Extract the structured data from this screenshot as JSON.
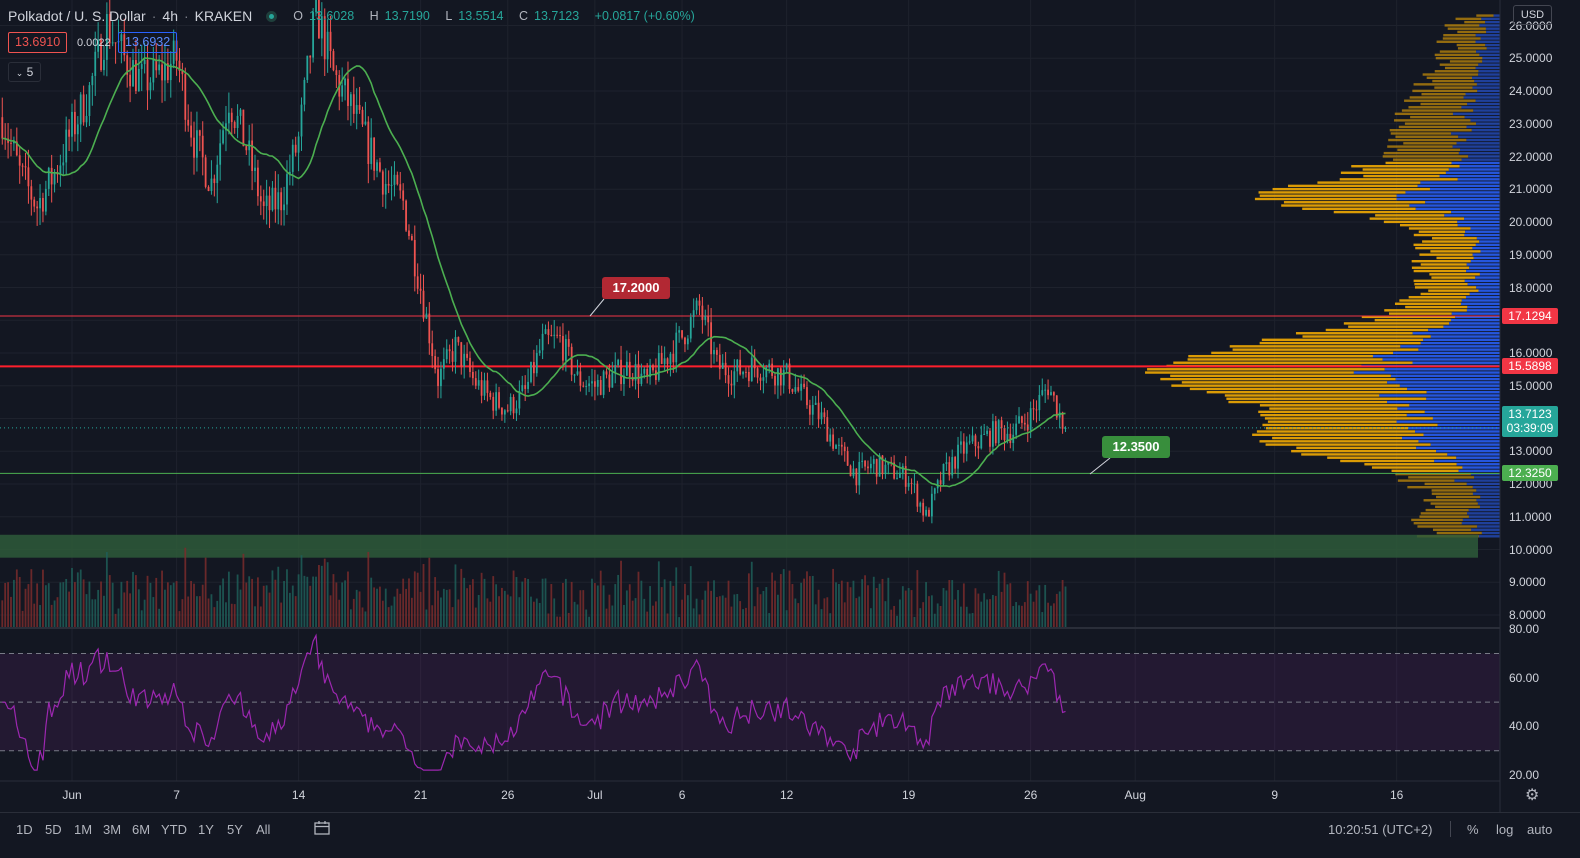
{
  "header": {
    "symbol": "Polkadot / U. S. Dollar",
    "interval": "4h",
    "exchange": "KRAKEN",
    "ohlc": {
      "o_label": "O",
      "o": "13.6028",
      "h_label": "H",
      "h": "13.7190",
      "l_label": "L",
      "l": "13.5514",
      "c_label": "C",
      "c": "13.7123",
      "change": "+0.0817 (+0.60%)"
    },
    "sell_price": "13.6910",
    "spread": "0.0022",
    "buy_price": "13.6932",
    "indicators_toggle": "5"
  },
  "colors": {
    "background": "#131722",
    "up": "#26a69a",
    "down": "#ef5350",
    "ma": "#4caf50",
    "rsi": "#9c27b0",
    "resistance": "#f23645",
    "support": "#4caf50",
    "vp_up": "#2962ff",
    "vp_down": "#ffb300"
  },
  "price_axis": {
    "currency_button": "USD",
    "labels": [
      "26.0000",
      "25.0000",
      "24.0000",
      "23.0000",
      "22.0000",
      "21.0000",
      "20.0000",
      "19.0000",
      "18.0000",
      "17.0000",
      "16.0000",
      "15.0000",
      "14.0000",
      "13.0000",
      "12.0000",
      "11.0000",
      "10.0000",
      "9.0000",
      "8.0000"
    ]
  },
  "rsi_axis": {
    "labels": [
      "80.00",
      "60.00",
      "40.00",
      "20.00"
    ]
  },
  "price_tags": {
    "resistance_high": "17.1294",
    "resistance_low": "15.5898",
    "last_price": "13.7123",
    "countdown": "03:39:09",
    "support": "12.3250"
  },
  "annotations": {
    "callout_high": "17.2000",
    "callout_low": "12.3500"
  },
  "time_axis": {
    "labels": [
      {
        "text": "Jun",
        "day": 0
      },
      {
        "text": "7",
        "day": 6
      },
      {
        "text": "14",
        "day": 13
      },
      {
        "text": "21",
        "day": 20
      },
      {
        "text": "26",
        "day": 25
      },
      {
        "text": "Jul",
        "day": 30
      },
      {
        "text": "6",
        "day": 35
      },
      {
        "text": "12",
        "day": 41
      },
      {
        "text": "19",
        "day": 48
      },
      {
        "text": "26",
        "day": 55
      },
      {
        "text": "Aug",
        "day": 61
      },
      {
        "text": "9",
        "day": 69
      },
      {
        "text": "16",
        "day": 76
      }
    ]
  },
  "bottom_bar": {
    "ranges": [
      "1D",
      "5D",
      "1M",
      "3M",
      "6M",
      "YTD",
      "1Y",
      "5Y",
      "All"
    ],
    "clock": "10:20:51 (UTC+2)",
    "percent": "%",
    "log": "log",
    "auto": "auto"
  },
  "chart_data": {
    "type": "line",
    "series": [
      {
        "name": "",
        "x_days": [
          -4,
          -3,
          -2,
          -1,
          0,
          1,
          2,
          3,
          4,
          5,
          6,
          7,
          8,
          9,
          10,
          11,
          12,
          13,
          14,
          15,
          16,
          17,
          18,
          19,
          20,
          21,
          22,
          23,
          24,
          25,
          26,
          27,
          28,
          29,
          30,
          31,
          32,
          33,
          34,
          35,
          36,
          37,
          38,
          39,
          40,
          41,
          42,
          43,
          44,
          45,
          46,
          47,
          48,
          49,
          50,
          51,
          52,
          53,
          54,
          55,
          56,
          57
        ],
        "close": [
          23.2,
          21.5,
          20.5,
          21.5,
          22.8,
          24.0,
          26.0,
          25.0,
          24.3,
          24.5,
          25.0,
          22.5,
          21.2,
          23.8,
          22.3,
          20.3,
          20.7,
          22.5,
          26.5,
          24.5,
          23.5,
          22.3,
          21.2,
          20.6,
          18.0,
          15.2,
          16.2,
          15.2,
          14.6,
          14.3,
          14.8,
          16.3,
          16.4,
          15.2,
          15.0,
          15.3,
          15.6,
          15.1,
          15.8,
          16.5,
          17.4,
          15.6,
          15.4,
          15.6,
          15.5,
          15.3,
          14.6,
          14.0,
          13.0,
          12.3,
          12.6,
          12.4,
          12.2,
          11.0,
          12.3,
          13.0,
          13.3,
          13.6,
          13.6,
          14.1,
          15.0,
          13.7
        ]
      }
    ],
    "horizontal_levels": [
      17.1294,
      15.5898,
      12.325
    ],
    "support_zone": [
      9.75,
      10.45
    ],
    "rsi_levels": [
      70,
      50,
      30
    ],
    "ylim": [
      7.9,
      26.4
    ],
    "xlim_days": [
      -4.2,
      84
    ],
    "last_price": 13.7123
  }
}
